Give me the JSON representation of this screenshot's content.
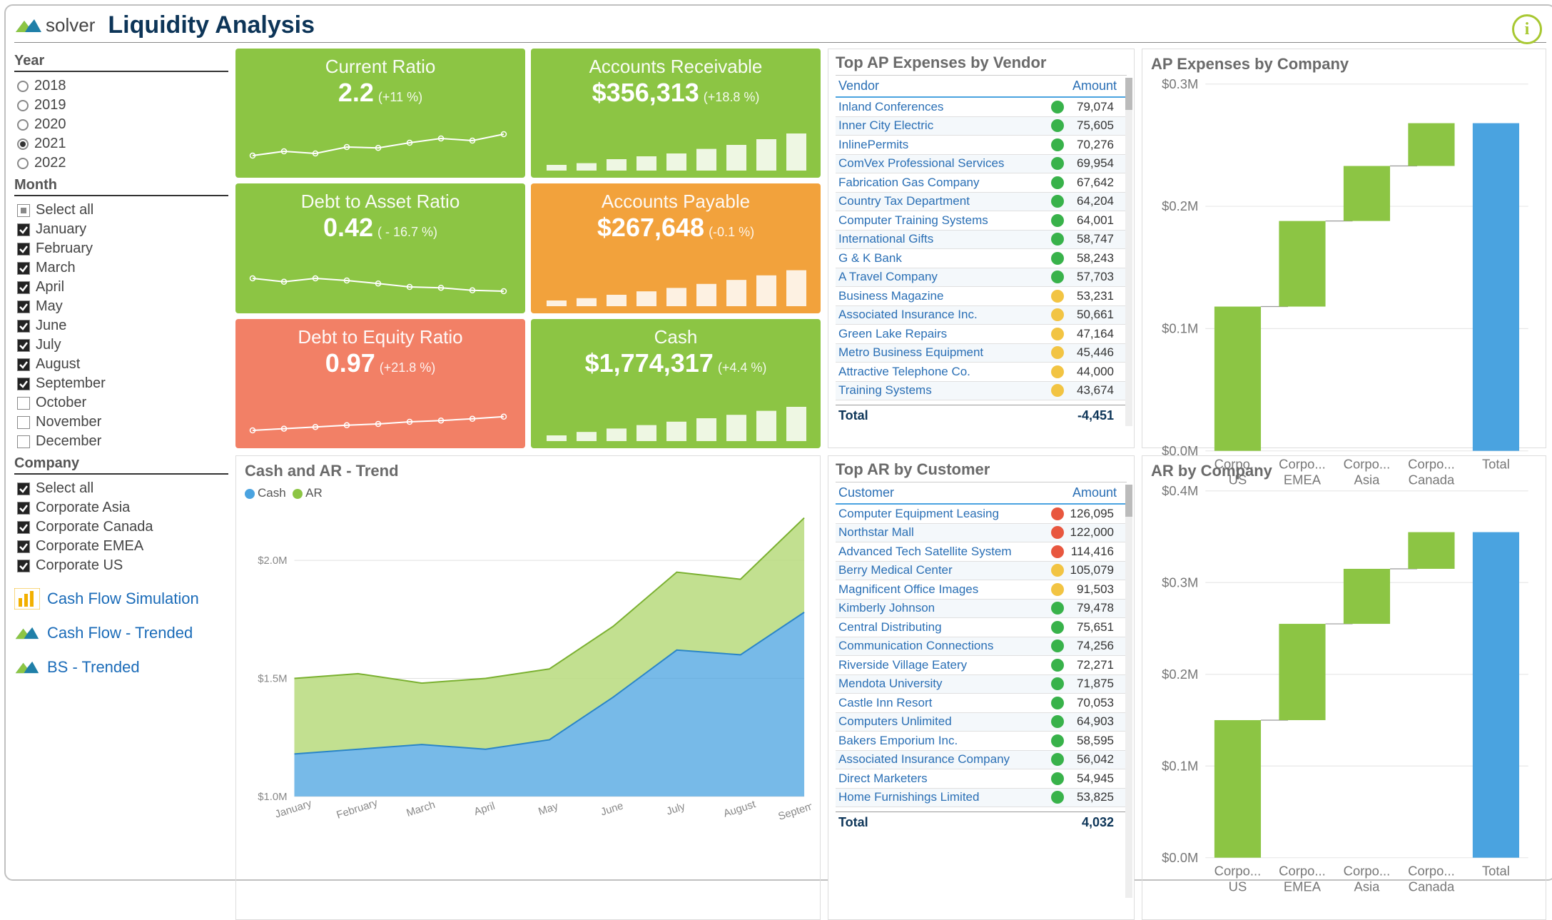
{
  "header": {
    "brand": "solver",
    "title": "Liquidity Analysis"
  },
  "filters": {
    "year": {
      "label": "Year",
      "options": [
        "2018",
        "2019",
        "2020",
        "2021",
        "2022"
      ],
      "selected": "2021"
    },
    "month": {
      "label": "Month",
      "select_all_label": "Select all",
      "options": [
        {
          "label": "January",
          "checked": true
        },
        {
          "label": "February",
          "checked": true
        },
        {
          "label": "March",
          "checked": true
        },
        {
          "label": "April",
          "checked": true
        },
        {
          "label": "May",
          "checked": true
        },
        {
          "label": "June",
          "checked": true
        },
        {
          "label": "July",
          "checked": true
        },
        {
          "label": "August",
          "checked": true
        },
        {
          "label": "September",
          "checked": true
        },
        {
          "label": "October",
          "checked": false
        },
        {
          "label": "November",
          "checked": false
        },
        {
          "label": "December",
          "checked": false
        }
      ]
    },
    "company": {
      "label": "Company",
      "select_all_label": "Select all",
      "select_all_checked": true,
      "options": [
        {
          "label": "Corporate Asia",
          "checked": true
        },
        {
          "label": "Corporate Canada",
          "checked": true
        },
        {
          "label": "Corporate EMEA",
          "checked": true
        },
        {
          "label": "Corporate US",
          "checked": true
        }
      ]
    }
  },
  "links": [
    {
      "label": "Cash Flow Simulation",
      "icon": "bars"
    },
    {
      "label": "Cash Flow - Trended",
      "icon": "mountain"
    },
    {
      "label": "BS - Trended",
      "icon": "mountain"
    }
  ],
  "kpis": [
    {
      "title": "Current Ratio",
      "value": "2.2",
      "delta": "(+11 %)",
      "type": "line",
      "color": "green",
      "points": [
        3,
        4,
        3.5,
        5,
        4.8,
        6,
        7,
        6.5,
        8
      ]
    },
    {
      "title": "Accounts Receivable",
      "value": "$356,313",
      "delta": "(+18.8 %)",
      "type": "bar",
      "color": "green",
      "points": [
        1,
        1.3,
        2,
        2.5,
        3,
        3.8,
        4.5,
        5.5,
        6.5
      ]
    },
    {
      "title": "Debt to Asset Ratio",
      "value": "0.42",
      "delta": "( - 16.7 %)",
      "type": "line",
      "color": "green",
      "points": [
        6,
        5.2,
        6,
        5.5,
        4.8,
        4,
        3.8,
        3.2,
        3
      ]
    },
    {
      "title": "Accounts Payable",
      "value": "$267,648",
      "delta": "(-0.1 %)",
      "type": "bar",
      "color": "orange",
      "points": [
        1,
        1.4,
        2,
        2.6,
        3.2,
        3.9,
        4.6,
        5.4,
        6.3
      ]
    },
    {
      "title": "Debt to Equity Ratio",
      "value": "0.97",
      "delta": "(+21.8 %)",
      "type": "line",
      "color": "coral",
      "points": [
        2,
        2.4,
        2.8,
        3.2,
        3.5,
        4,
        4.3,
        4.7,
        5.2
      ]
    },
    {
      "title": "Cash",
      "value": "$1,774,317",
      "delta": "(+4.4 %)",
      "type": "bar",
      "color": "green",
      "points": [
        1,
        1.6,
        2.2,
        2.8,
        3.4,
        4,
        4.6,
        5.3,
        6
      ]
    }
  ],
  "ap_table": {
    "title": "Top AP Expenses by Vendor",
    "col1": "Vendor",
    "col2": "Amount",
    "total_label": "Total",
    "total_value": "-4,451",
    "rows": [
      {
        "name": "Inland Conferences",
        "amount": "79,074",
        "dot": "#38b24a"
      },
      {
        "name": "Inner City Electric",
        "amount": "75,605",
        "dot": "#38b24a"
      },
      {
        "name": "InlinePermits",
        "amount": "70,276",
        "dot": "#38b24a"
      },
      {
        "name": "ComVex Professional Services",
        "amount": "69,954",
        "dot": "#38b24a"
      },
      {
        "name": "Fabrication Gas Company",
        "amount": "67,642",
        "dot": "#38b24a"
      },
      {
        "name": "Country Tax Department",
        "amount": "64,204",
        "dot": "#38b24a"
      },
      {
        "name": "Computer Training Systems",
        "amount": "64,001",
        "dot": "#38b24a"
      },
      {
        "name": "International Gifts",
        "amount": "58,747",
        "dot": "#38b24a"
      },
      {
        "name": "G & K Bank",
        "amount": "58,243",
        "dot": "#38b24a"
      },
      {
        "name": "A Travel Company",
        "amount": "57,703",
        "dot": "#38b24a"
      },
      {
        "name": "Business Magazine",
        "amount": "53,231",
        "dot": "#f2c443"
      },
      {
        "name": "Associated Insurance Inc.",
        "amount": "50,661",
        "dot": "#f2c443"
      },
      {
        "name": "Green Lake Repairs",
        "amount": "47,164",
        "dot": "#f2c443"
      },
      {
        "name": "Metro Business Equipment",
        "amount": "45,446",
        "dot": "#f2c443"
      },
      {
        "name": "Attractive Telephone Co.",
        "amount": "44,000",
        "dot": "#f2c443"
      },
      {
        "name": "Training Systems",
        "amount": "43,674",
        "dot": "#f2c443"
      }
    ]
  },
  "ar_table": {
    "title": "Top AR by Customer",
    "col1": "Customer",
    "col2": "Amount",
    "total_label": "Total",
    "total_value": "4,032",
    "rows": [
      {
        "name": "Computer Equipment Leasing",
        "amount": "126,095",
        "dot": "#e8573f"
      },
      {
        "name": "Northstar Mall",
        "amount": "122,000",
        "dot": "#e8573f"
      },
      {
        "name": "Advanced Tech Satellite System",
        "amount": "114,416",
        "dot": "#e8573f"
      },
      {
        "name": "Berry Medical Center",
        "amount": "105,079",
        "dot": "#f2c443"
      },
      {
        "name": "Magnificent Office Images",
        "amount": "91,503",
        "dot": "#f2c443"
      },
      {
        "name": "Kimberly Johnson",
        "amount": "79,478",
        "dot": "#38b24a"
      },
      {
        "name": "Central Distributing",
        "amount": "75,651",
        "dot": "#38b24a"
      },
      {
        "name": "Communication Connections",
        "amount": "74,256",
        "dot": "#38b24a"
      },
      {
        "name": "Riverside Village Eatery",
        "amount": "72,271",
        "dot": "#38b24a"
      },
      {
        "name": "Mendota University",
        "amount": "71,875",
        "dot": "#38b24a"
      },
      {
        "name": "Castle Inn Resort",
        "amount": "70,053",
        "dot": "#38b24a"
      },
      {
        "name": "Computers Unlimited",
        "amount": "64,903",
        "dot": "#38b24a"
      },
      {
        "name": "Bakers Emporium Inc.",
        "amount": "58,595",
        "dot": "#38b24a"
      },
      {
        "name": "Associated Insurance Company",
        "amount": "56,042",
        "dot": "#38b24a"
      },
      {
        "name": "Direct Marketers",
        "amount": "54,945",
        "dot": "#38b24a"
      },
      {
        "name": "Home Furnishings Limited",
        "amount": "53,825",
        "dot": "#38b24a"
      }
    ]
  },
  "trend_chart": {
    "title": "Cash and AR - Trend",
    "legend": [
      {
        "label": "Cash",
        "color": "#4aa3e0"
      },
      {
        "label": "AR",
        "color": "#8cc544"
      }
    ],
    "x": [
      "January",
      "February",
      "March",
      "April",
      "May",
      "June",
      "July",
      "August",
      "September"
    ],
    "y_ticks": [
      "$1.0M",
      "$1.5M",
      "$2.0M"
    ],
    "cash": [
      1.18,
      1.2,
      1.22,
      1.2,
      1.24,
      1.42,
      1.62,
      1.6,
      1.78
    ],
    "total": [
      1.5,
      1.52,
      1.48,
      1.5,
      1.54,
      1.72,
      1.95,
      1.92,
      2.18
    ],
    "ymin": 1.0,
    "ymax": 2.2,
    "colors": {
      "cash": "#4aa3e0",
      "ar": "#b7db7d"
    }
  },
  "ap_company": {
    "title": "AP Expenses by Company",
    "y_ticks": [
      "$0.0M",
      "$0.1M",
      "$0.2M",
      "$0.3M"
    ],
    "ymax": 0.3,
    "cats": [
      "Corpo... US",
      "Corpo... EMEA",
      "Corpo... Asia",
      "Corpo... Canada",
      "Total"
    ],
    "values": [
      0.118,
      0.07,
      0.045,
      0.035,
      0.268
    ],
    "bar_color": "#8cc544",
    "total_color": "#4aa3e0"
  },
  "ar_company": {
    "title": "AR by Company",
    "y_ticks": [
      "$0.0M",
      "$0.1M",
      "$0.2M",
      "$0.3M",
      "$0.4M"
    ],
    "ymax": 0.4,
    "cats": [
      "Corpo... US",
      "Corpo... EMEA",
      "Corpo... Asia",
      "Corpo... Canada",
      "Total"
    ],
    "values": [
      0.15,
      0.105,
      0.06,
      0.04,
      0.355
    ],
    "bar_color": "#8cc544",
    "total_color": "#4aa3e0"
  }
}
